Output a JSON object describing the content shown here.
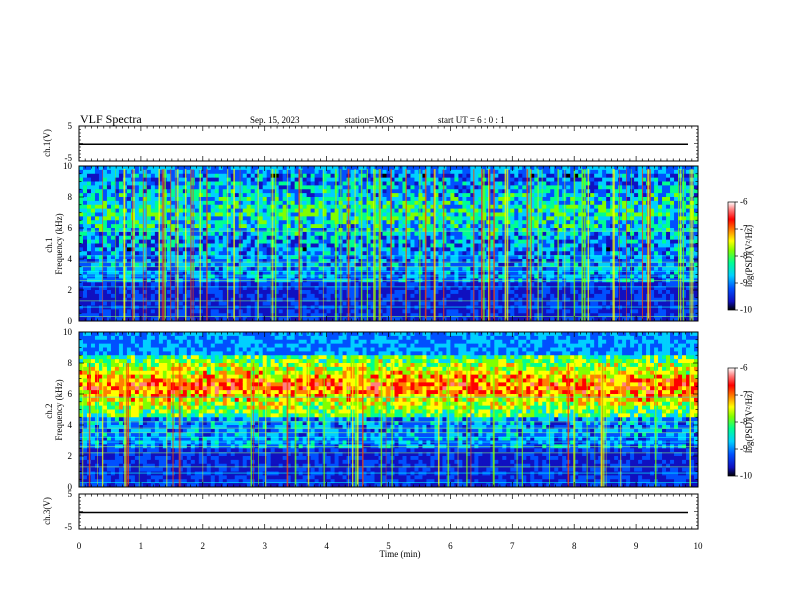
{
  "header": {
    "title": "VLF Spectra",
    "date": "Sep. 15, 2023",
    "station": "station=MOS",
    "start_ut": "start UT =  6 : 0 : 1"
  },
  "colors": {
    "scale": [
      "#000000",
      "#1010c0",
      "#0050ff",
      "#00d0ff",
      "#00ff90",
      "#80ff00",
      "#ffff00",
      "#ff8000",
      "#ff0000",
      "#ff8080",
      "#ffffff"
    ]
  },
  "chart_data": [
    {
      "type": "line",
      "id": "ch1-waveform",
      "ylabel": "ch.1(V)",
      "ylim": [
        -5,
        5
      ],
      "yticks": [
        "5",
        "-5"
      ],
      "x": [
        0,
        10
      ],
      "y": [
        -0.2,
        -0.2
      ]
    },
    {
      "type": "heatmap",
      "id": "ch1-spectrogram",
      "ylabel": "ch.1\nFrequency (kHz)",
      "ylim": [
        0,
        10
      ],
      "yticks": [
        "0",
        "2",
        "4",
        "6",
        "8",
        "10"
      ],
      "xlim": [
        0,
        10
      ],
      "colorbar": {
        "label": "log(PSD)(V²/Hz)",
        "range": [
          -10,
          -6
        ],
        "ticks": [
          "-6",
          "-7",
          "-8",
          "-9",
          "-10"
        ]
      },
      "dominant_band_khz": [
        4.5,
        9.5
      ],
      "approx_level_in_band": -8.5
    },
    {
      "type": "heatmap",
      "id": "ch2-spectrogram",
      "ylabel": "ch.2\nFrequency (kHz)",
      "ylim": [
        0,
        10
      ],
      "yticks": [
        "0",
        "2",
        "4",
        "6",
        "8",
        "10"
      ],
      "xlim": [
        0,
        10
      ],
      "colorbar": {
        "label": "log(PSD)(V²/Hz)",
        "range": [
          -10,
          -6
        ],
        "ticks": [
          "-6",
          "-7",
          "-8",
          "-9",
          "-10"
        ]
      },
      "dominant_band_khz": [
        4.5,
        8.5
      ],
      "approx_level_in_band": -7.0
    },
    {
      "type": "line",
      "id": "ch3-waveform",
      "ylabel": "ch.3(V)",
      "ylim": [
        -5,
        5
      ],
      "yticks": [
        "5",
        "-5"
      ],
      "x": [
        0,
        10
      ],
      "y": [
        -0.3,
        -0.3
      ]
    }
  ],
  "xaxis": {
    "label": "Time (min)",
    "ticks": [
      "0",
      "1",
      "2",
      "3",
      "4",
      "5",
      "6",
      "7",
      "8",
      "9",
      "10"
    ]
  }
}
